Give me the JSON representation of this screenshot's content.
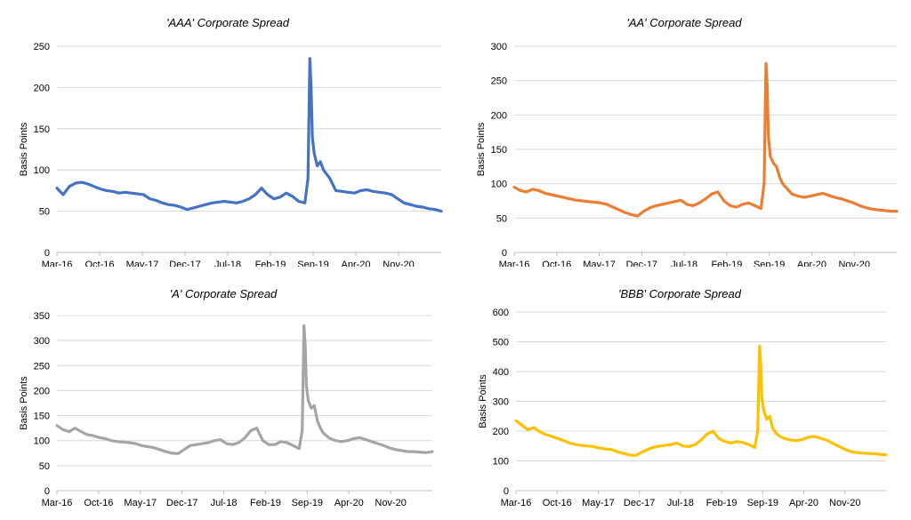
{
  "chart_data": [
    {
      "type": "line",
      "title": "'AAA' Corporate Spread",
      "ylabel": "Basis Points",
      "xlabel": "",
      "ylim": [
        0,
        250
      ],
      "yticks": [
        0,
        50,
        100,
        150,
        200,
        250
      ],
      "xticks": [
        "Mar-16",
        "Oct-16",
        "May-17",
        "Dec-17",
        "Jul-18",
        "Feb-19",
        "Sep-19",
        "Apr-20",
        "Nov-20"
      ],
      "xrange": [
        0,
        62
      ],
      "color": "#4472c4",
      "series": [
        {
          "name": "AAA",
          "x": [
            0,
            1,
            2,
            3,
            4,
            5,
            6,
            7,
            8,
            9,
            10,
            11,
            12,
            13,
            14,
            15,
            16,
            17,
            18,
            19,
            20,
            21,
            22,
            23,
            24,
            25,
            26,
            27,
            28,
            29,
            30,
            31,
            32,
            33,
            34,
            35,
            36,
            37,
            38,
            39,
            40,
            40.5,
            40.8,
            41,
            41.2,
            41.5,
            42,
            42.5,
            43,
            43.5,
            44,
            45,
            46,
            47,
            48,
            49,
            50,
            51,
            52,
            53,
            54,
            55,
            56,
            57,
            58,
            59,
            60,
            61,
            62
          ],
          "values": [
            78,
            70,
            80,
            84,
            85,
            83,
            80,
            77,
            75,
            74,
            72,
            73,
            72,
            71,
            70,
            65,
            63,
            60,
            58,
            57,
            55,
            52,
            54,
            56,
            58,
            60,
            61,
            62,
            61,
            60,
            62,
            65,
            70,
            78,
            70,
            65,
            67,
            72,
            68,
            62,
            60,
            90,
            235,
            200,
            140,
            120,
            105,
            110,
            100,
            95,
            90,
            75,
            74,
            73,
            72,
            75,
            76,
            74,
            73,
            72,
            70,
            65,
            60,
            58,
            56,
            55,
            53,
            52,
            50
          ]
        }
      ]
    },
    {
      "type": "line",
      "title": "'AA' Corporate Spread",
      "ylabel": "Basis Points",
      "xlabel": "",
      "ylim": [
        0,
        300
      ],
      "yticks": [
        0,
        50,
        100,
        150,
        200,
        250,
        300
      ],
      "xticks": [
        "Mar-16",
        "Oct-16",
        "May-17",
        "Dec-17",
        "Jul-18",
        "Feb-19",
        "Sep-19",
        "Apr-20",
        "Nov-20"
      ],
      "xrange": [
        0,
        62
      ],
      "color": "#ed7d31",
      "series": [
        {
          "name": "AA",
          "x": [
            0,
            1,
            2,
            3,
            4,
            5,
            6,
            7,
            8,
            9,
            10,
            11,
            12,
            13,
            14,
            15,
            16,
            17,
            18,
            19,
            20,
            21,
            22,
            23,
            24,
            25,
            26,
            27,
            28,
            29,
            30,
            31,
            32,
            33,
            34,
            35,
            36,
            37,
            38,
            39,
            40,
            40.5,
            40.8,
            41,
            41.2,
            41.5,
            42,
            42.5,
            43,
            43.5,
            44,
            45,
            46,
            47,
            48,
            49,
            50,
            51,
            52,
            53,
            54,
            55,
            56,
            57,
            58,
            59,
            60,
            61,
            62
          ],
          "values": [
            95,
            90,
            88,
            92,
            90,
            86,
            84,
            82,
            80,
            78,
            76,
            75,
            74,
            73,
            72,
            70,
            66,
            62,
            58,
            55,
            53,
            60,
            65,
            68,
            70,
            72,
            74,
            76,
            70,
            68,
            72,
            78,
            85,
            88,
            75,
            68,
            66,
            70,
            72,
            68,
            64,
            100,
            275,
            240,
            170,
            140,
            130,
            125,
            110,
            100,
            95,
            85,
            82,
            80,
            82,
            84,
            86,
            83,
            80,
            78,
            75,
            72,
            68,
            65,
            63,
            62,
            61,
            60,
            60
          ]
        }
      ]
    },
    {
      "type": "line",
      "title": "'A' Corporate Spread",
      "ylabel": "Basis Points",
      "xlabel": "",
      "ylim": [
        0,
        350
      ],
      "yticks": [
        0,
        50,
        100,
        150,
        200,
        250,
        300,
        350
      ],
      "xticks": [
        "Mar-16",
        "Oct-16",
        "May-17",
        "Dec-17",
        "Jul-18",
        "Feb-19",
        "Sep-19",
        "Apr-20",
        "Nov-20"
      ],
      "xrange": [
        0,
        62
      ],
      "color": "#a5a5a5",
      "series": [
        {
          "name": "A",
          "x": [
            0,
            1,
            2,
            3,
            4,
            5,
            6,
            7,
            8,
            9,
            10,
            11,
            12,
            13,
            14,
            15,
            16,
            17,
            18,
            19,
            20,
            21,
            22,
            23,
            24,
            25,
            26,
            27,
            28,
            29,
            30,
            31,
            32,
            33,
            34,
            35,
            36,
            37,
            38,
            39,
            40,
            40.5,
            40.8,
            41,
            41.2,
            41.5,
            42,
            42.5,
            43,
            43.5,
            44,
            45,
            46,
            47,
            48,
            49,
            50,
            51,
            52,
            53,
            54,
            55,
            56,
            57,
            58,
            59,
            60,
            61,
            62
          ],
          "values": [
            130,
            122,
            118,
            125,
            118,
            112,
            110,
            106,
            104,
            100,
            98,
            97,
            96,
            94,
            90,
            88,
            86,
            82,
            78,
            75,
            74,
            82,
            90,
            92,
            94,
            96,
            100,
            102,
            94,
            92,
            96,
            105,
            120,
            125,
            100,
            92,
            92,
            98,
            96,
            90,
            84,
            120,
            330,
            290,
            210,
            180,
            165,
            170,
            140,
            125,
            115,
            105,
            100,
            98,
            100,
            104,
            106,
            102,
            98,
            94,
            90,
            85,
            82,
            80,
            78,
            78,
            77,
            76,
            78
          ]
        }
      ]
    },
    {
      "type": "line",
      "title": "'BBB' Corporate Spread",
      "ylabel": "Basis Points",
      "xlabel": "",
      "ylim": [
        0,
        600
      ],
      "yticks": [
        0,
        100,
        200,
        300,
        400,
        500,
        600
      ],
      "xticks": [
        "Mar-16",
        "Oct-16",
        "May-17",
        "Dec-17",
        "Jul-18",
        "Feb-19",
        "Sep-19",
        "Apr-20",
        "Nov-20"
      ],
      "xrange": [
        0,
        62
      ],
      "color": "#ffc000",
      "series": [
        {
          "name": "BBB",
          "x": [
            0,
            1,
            2,
            3,
            4,
            5,
            6,
            7,
            8,
            9,
            10,
            11,
            12,
            13,
            14,
            15,
            16,
            17,
            18,
            19,
            20,
            21,
            22,
            23,
            24,
            25,
            26,
            27,
            28,
            29,
            30,
            31,
            32,
            33,
            34,
            35,
            36,
            37,
            38,
            39,
            40,
            40.5,
            40.8,
            41,
            41.2,
            41.5,
            42,
            42.5,
            43,
            43.5,
            44,
            45,
            46,
            47,
            48,
            49,
            50,
            51,
            52,
            53,
            54,
            55,
            56,
            57,
            58,
            59,
            60,
            61,
            62
          ],
          "values": [
            235,
            220,
            205,
            212,
            198,
            188,
            182,
            175,
            168,
            160,
            155,
            152,
            150,
            148,
            143,
            140,
            138,
            130,
            125,
            120,
            118,
            128,
            138,
            145,
            150,
            152,
            155,
            160,
            150,
            148,
            155,
            170,
            190,
            200,
            175,
            165,
            160,
            165,
            162,
            155,
            145,
            200,
            485,
            420,
            310,
            270,
            240,
            250,
            210,
            195,
            185,
            175,
            170,
            168,
            172,
            180,
            182,
            176,
            170,
            160,
            150,
            140,
            132,
            128,
            126,
            125,
            124,
            122,
            120
          ]
        }
      ]
    }
  ]
}
